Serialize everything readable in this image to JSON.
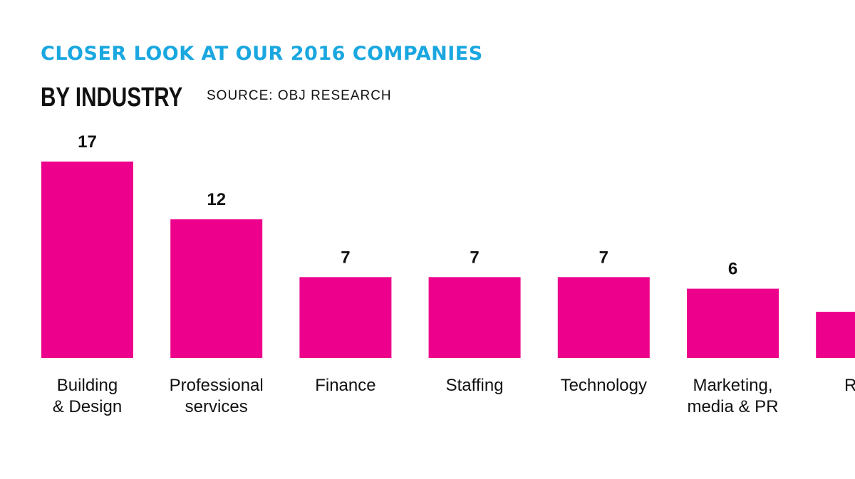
{
  "header": {
    "kicker": "CLOSER LOOK AT OUR 2016 COMPANIES",
    "title": "BY INDUSTRY",
    "source": "SOURCE: OBJ RESEARCH"
  },
  "colors": {
    "bar": "#ec008c",
    "kicker": "#1aa7e0"
  },
  "chart_data": {
    "type": "bar",
    "categories": [
      [
        "Building",
        "& Design"
      ],
      [
        "Professional",
        "services"
      ],
      [
        "Finance"
      ],
      [
        "Staffing"
      ],
      [
        "Technology"
      ],
      [
        "Marketing,",
        "media & PR"
      ],
      [
        "Real"
      ]
    ],
    "values": [
      17,
      12,
      7,
      7,
      7,
      6,
      4
    ],
    "value_labels": [
      "17",
      "12",
      "7",
      "7",
      "7",
      "6",
      ""
    ],
    "ylim": [
      0,
      17
    ],
    "grid": false
  }
}
